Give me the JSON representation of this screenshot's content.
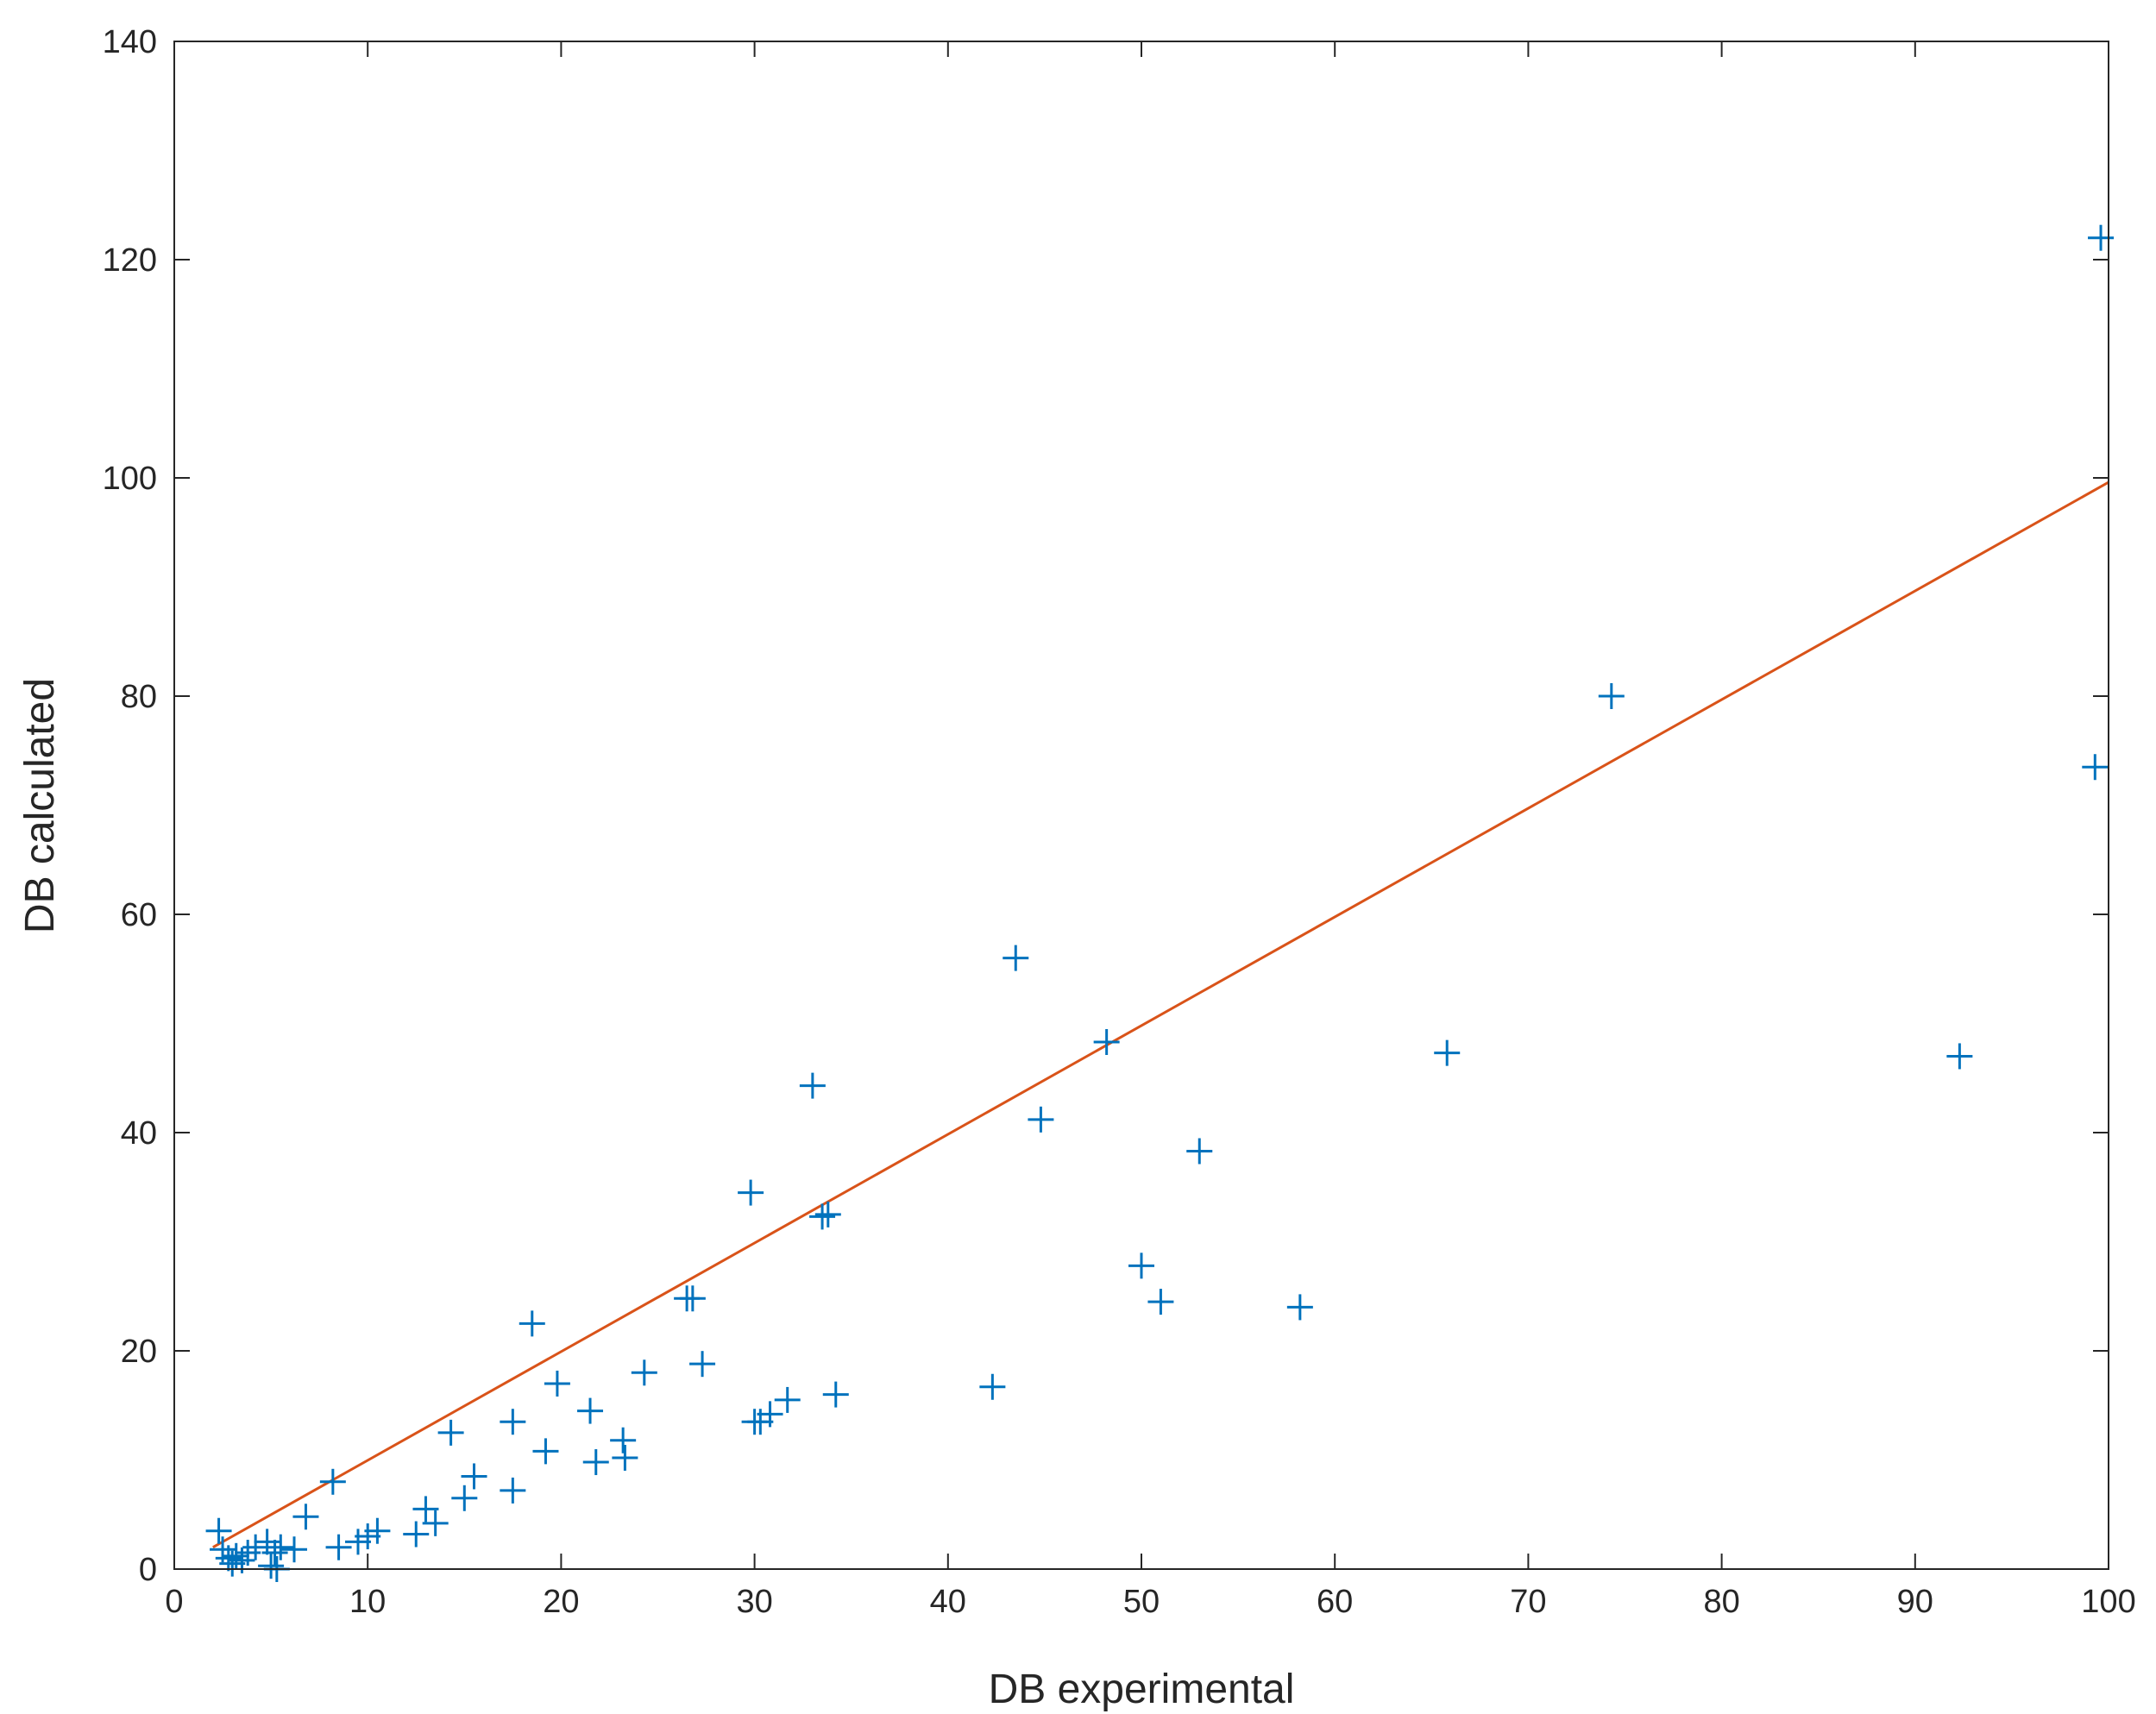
{
  "chart_data": {
    "type": "scatter",
    "title": "",
    "xlabel": "DB  experimental",
    "ylabel": "DB calculated",
    "xlim": [
      0,
      100
    ],
    "ylim": [
      0,
      140
    ],
    "xticks": [
      0,
      10,
      20,
      30,
      40,
      50,
      60,
      70,
      80,
      90,
      100
    ],
    "yticks": [
      0,
      20,
      40,
      60,
      80,
      100,
      120,
      140
    ],
    "grid": false,
    "colors": {
      "points": "#0072BD",
      "fit_line": "#D95319",
      "axes": "#262626"
    },
    "series": [
      {
        "marker": "plus",
        "x": [
          2.3,
          2.5,
          2.8,
          3.0,
          3.2,
          3.5,
          3.8,
          4.2,
          4.8,
          5.0,
          5.2,
          5.3,
          5.5,
          6.2,
          6.8,
          8.2,
          8.5,
          9.5,
          10.0,
          10.5,
          12.5,
          13.0,
          13.5,
          14.3,
          15.0,
          15.5,
          17.5,
          17.5,
          18.5,
          19.2,
          19.8,
          21.5,
          21.8,
          23.2,
          23.3,
          24.3,
          26.5,
          26.8,
          27.3,
          29.8,
          30.0,
          30.3,
          30.8,
          31.7,
          33.0,
          33.5,
          33.8,
          34.2,
          42.3,
          43.5,
          44.8,
          48.2,
          50.0,
          51.0,
          53.0,
          58.2,
          65.8,
          74.3,
          92.3,
          99.3,
          99.6
        ],
        "y": [
          3.5,
          1.8,
          1.0,
          0.5,
          1.2,
          0.8,
          1.5,
          2.0,
          2.5,
          0.3,
          1.5,
          0.0,
          2.0,
          1.8,
          4.8,
          8.0,
          2.0,
          2.5,
          3.0,
          3.5,
          3.2,
          5.5,
          4.2,
          12.5,
          6.5,
          8.5,
          13.5,
          7.2,
          22.5,
          10.8,
          17.0,
          14.5,
          9.8,
          11.8,
          10.2,
          18.0,
          24.8,
          24.8,
          18.8,
          34.5,
          13.5,
          13.5,
          14.2,
          15.5,
          44.3,
          32.3,
          32.5,
          16.0,
          16.7,
          56.0,
          41.2,
          48.3,
          27.8,
          24.5,
          38.3,
          24.0,
          47.3,
          80.0,
          47.0,
          73.5,
          122.0
        ]
      }
    ],
    "fit_line": {
      "x": [
        2.0,
        100.0
      ],
      "y": [
        2.0,
        99.6
      ]
    }
  }
}
